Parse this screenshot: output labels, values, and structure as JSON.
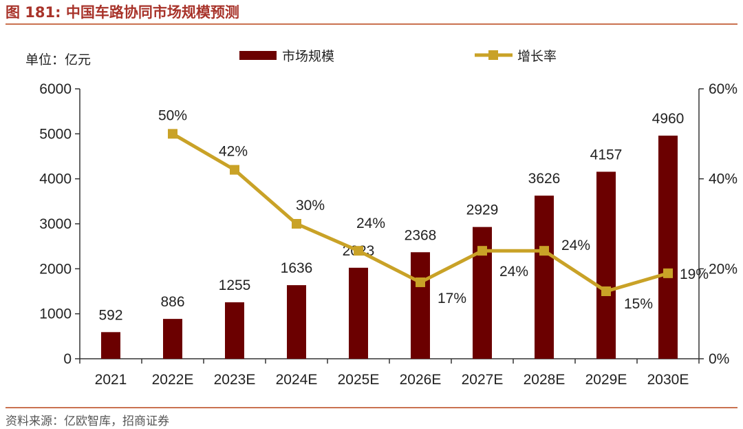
{
  "header": {
    "figure_number": "图 181:",
    "title": "中国车路协同市场规模预测"
  },
  "footer": {
    "source": "资料来源：亿欧智库，招商证券"
  },
  "colors": {
    "bar": "#6b0000",
    "line": "#c9a227",
    "title": "#a8332a",
    "rule": "#c9714f"
  },
  "chart_data": {
    "type": "bar",
    "unit_label": "单位：亿元",
    "categories": [
      "2021",
      "2022E",
      "2023E",
      "2024E",
      "2025E",
      "2026E",
      "2027E",
      "2028E",
      "2029E",
      "2030E"
    ],
    "series": [
      {
        "name": "市场规模",
        "type": "bar",
        "axis": "left",
        "values": [
          592,
          886,
          1255,
          1636,
          2023,
          2368,
          2929,
          3626,
          4157,
          4960
        ],
        "labels": [
          "592",
          "886",
          "1255",
          "1636",
          "2023",
          "2368",
          "2929",
          "3626",
          "4157",
          "4960"
        ]
      },
      {
        "name": "增长率",
        "type": "line",
        "axis": "right",
        "values": [
          null,
          50,
          42,
          30,
          24,
          17,
          24,
          24,
          15,
          19
        ],
        "labels": [
          "",
          "50%",
          "42%",
          "30%",
          "24%",
          "17%",
          "24%",
          "24%",
          "15%",
          "19%"
        ]
      }
    ],
    "y_left": {
      "min": 0,
      "max": 6000,
      "ticks": [
        "0",
        "1000",
        "2000",
        "3000",
        "4000",
        "5000",
        "6000"
      ]
    },
    "y_right": {
      "min": 0,
      "max": 60,
      "ticks": [
        "0%",
        "20%",
        "40%",
        "60%"
      ]
    },
    "legend": {
      "placement": "top-center"
    }
  }
}
